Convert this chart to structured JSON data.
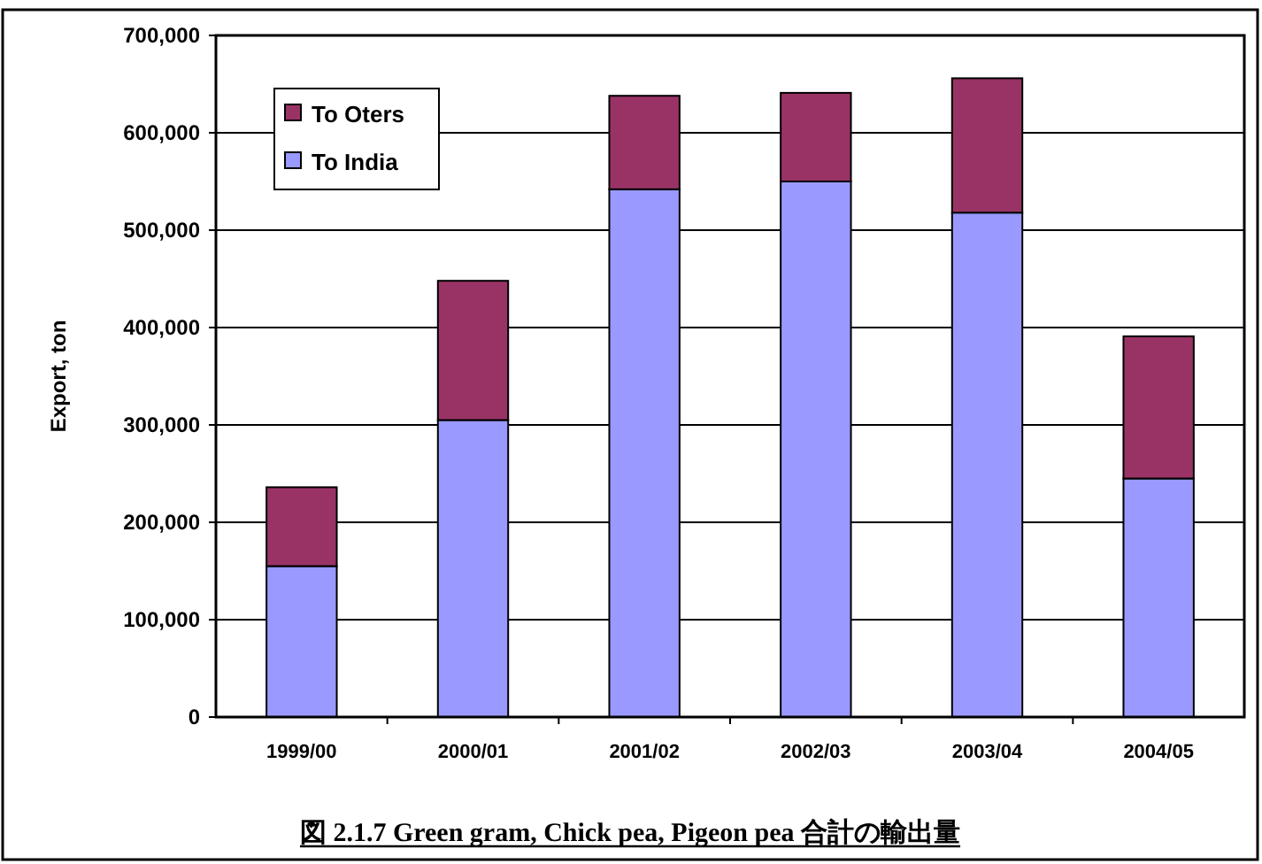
{
  "chart_data": {
    "type": "bar",
    "stacked": true,
    "title": "図 2.1.7 Green gram, Chick pea, Pigeon pea 合計の輸出量",
    "ylabel": "Export, ton",
    "categories": [
      "1999/00",
      "2000/01",
      "2001/02",
      "2002/03",
      "2003/04",
      "2004/05"
    ],
    "series": [
      {
        "name": "To India",
        "color": "#9999ff",
        "values": [
          155000,
          305000,
          542000,
          550000,
          518000,
          245000
        ]
      },
      {
        "name": "To Oters",
        "color": "#993366",
        "values": [
          81000,
          143000,
          96000,
          91000,
          138000,
          146000
        ]
      }
    ],
    "ylim": [
      0,
      700000
    ],
    "yticks": [
      {
        "value": 0,
        "label": "0"
      },
      {
        "value": 100000,
        "label": "100,000"
      },
      {
        "value": 200000,
        "label": "200,000"
      },
      {
        "value": 300000,
        "label": "300,000"
      },
      {
        "value": 400000,
        "label": "400,000"
      },
      {
        "value": 500000,
        "label": "500,000"
      },
      {
        "value": 600000,
        "label": "600,000"
      },
      {
        "value": 700000,
        "label": "700,000"
      }
    ],
    "grid": "y",
    "legend": "top left"
  }
}
